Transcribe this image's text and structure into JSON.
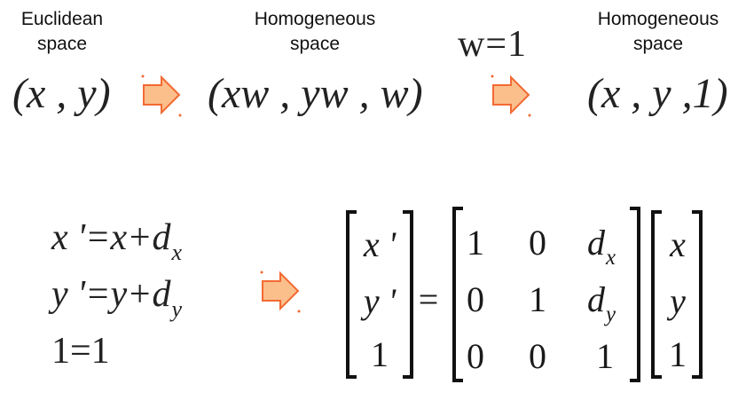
{
  "top": {
    "euclidean": {
      "line1": "Euclidean",
      "line2": "space"
    },
    "homogeneous_1": {
      "line1": "Homogeneous",
      "line2": "space"
    },
    "homogeneous_2": {
      "line1": "Homogeneous",
      "line2": "space"
    },
    "w_equals": "w=1",
    "expr_euclidean": "(x , y)",
    "expr_homogeneous": "(xw , yw , w)",
    "expr_homogeneous_w1": "(x , y ,1)"
  },
  "bottom": {
    "equations": [
      {
        "lhs": "x '=x+d",
        "sub": "x"
      },
      {
        "lhs": "y '=y+d",
        "sub": "y"
      },
      {
        "lhs": "1=1",
        "sub": ""
      }
    ],
    "lhs_vector": [
      "x '",
      "y '",
      "1"
    ],
    "equals": "=",
    "matrix": [
      [
        "1",
        "0",
        "d",
        "x"
      ],
      [
        "0",
        "1",
        "d",
        "y"
      ],
      [
        "0",
        "0",
        "1",
        ""
      ]
    ],
    "rhs_vector": [
      "x",
      "y",
      "1"
    ]
  },
  "colors": {
    "arrow_fill": "#fbbf8c",
    "arrow_stroke": "#f26a33"
  },
  "icons": [
    "right-arrow-icon"
  ]
}
